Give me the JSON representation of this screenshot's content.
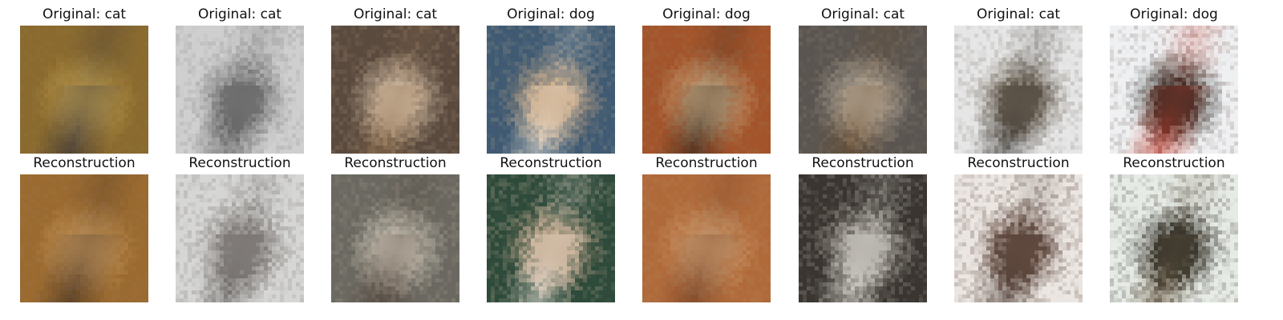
{
  "rows": [
    {
      "titles": [
        "Original: cat",
        "Original: cat",
        "Original: cat",
        "Original: dog",
        "Original: dog",
        "Original: cat",
        "Original: cat",
        "Original: dog"
      ],
      "images": [
        {
          "description_icon": "cat-photo-icon",
          "bg": "#8a6a2e",
          "fg1": "#c9a54e",
          "fg2": "#2b2a3a"
        },
        {
          "description_icon": "cat-photo-icon",
          "bg": "#cfcfcf",
          "fg1": "#7a7a7a",
          "fg2": "#5a5a5a"
        },
        {
          "description_icon": "cat-photo-icon",
          "bg": "#5a4a3e",
          "fg1": "#d6c2aa",
          "fg2": "#8a6a4a"
        },
        {
          "description_icon": "dog-photo-icon",
          "bg": "#3f5a72",
          "fg1": "#c8a27a",
          "fg2": "#e8e2d8"
        },
        {
          "description_icon": "dog-photo-icon",
          "bg": "#a3542a",
          "fg1": "#d7b68a",
          "fg2": "#2a1e18"
        },
        {
          "description_icon": "cat-photo-icon",
          "bg": "#5a5550",
          "fg1": "#bfb6a8",
          "fg2": "#6a4a2a"
        },
        {
          "description_icon": "cat-photo-icon",
          "bg": "#e6e6e6",
          "fg1": "#6d6152",
          "fg2": "#3d3a36"
        },
        {
          "description_icon": "dog-photo-icon",
          "bg": "#eef0f2",
          "fg1": "#1f2a25",
          "fg2": "#c33a2a"
        }
      ]
    },
    {
      "titles": [
        "Reconstruction",
        "Reconstruction",
        "Reconstruction",
        "Reconstruction",
        "Reconstruction",
        "Reconstruction",
        "Reconstruction",
        "Reconstruction"
      ],
      "images": [
        {
          "description_icon": "reconstructed-cat-icon",
          "bg": "#9a6a30",
          "fg1": "#d2a060",
          "fg2": "#3a2a20"
        },
        {
          "description_icon": "reconstructed-cat-icon",
          "bg": "#d6d6d4",
          "fg1": "#8a8582",
          "fg2": "#6a6663"
        },
        {
          "description_icon": "reconstructed-cat-icon",
          "bg": "#6a6860",
          "fg1": "#d8d2c4",
          "fg2": "#4a3a30"
        },
        {
          "description_icon": "reconstructed-dog-icon",
          "bg": "#2e4a3a",
          "fg1": "#c4a486",
          "fg2": "#e0dcd4"
        },
        {
          "description_icon": "reconstructed-dog-icon",
          "bg": "#b06a3a",
          "fg1": "#d9a878",
          "fg2": "#6a3a22"
        },
        {
          "description_icon": "reconstructed-cat-icon",
          "bg": "#3a3530",
          "fg1": "#a6a29a",
          "fg2": "#dcdad4"
        },
        {
          "description_icon": "reconstructed-cat-icon",
          "bg": "#ebe6e2",
          "fg1": "#6a5045",
          "fg2": "#4a3a32"
        },
        {
          "description_icon": "reconstructed-dog-icon",
          "bg": "#e6ebe6",
          "fg1": "#2a2a24",
          "fg2": "#6a5a44"
        }
      ]
    }
  ]
}
